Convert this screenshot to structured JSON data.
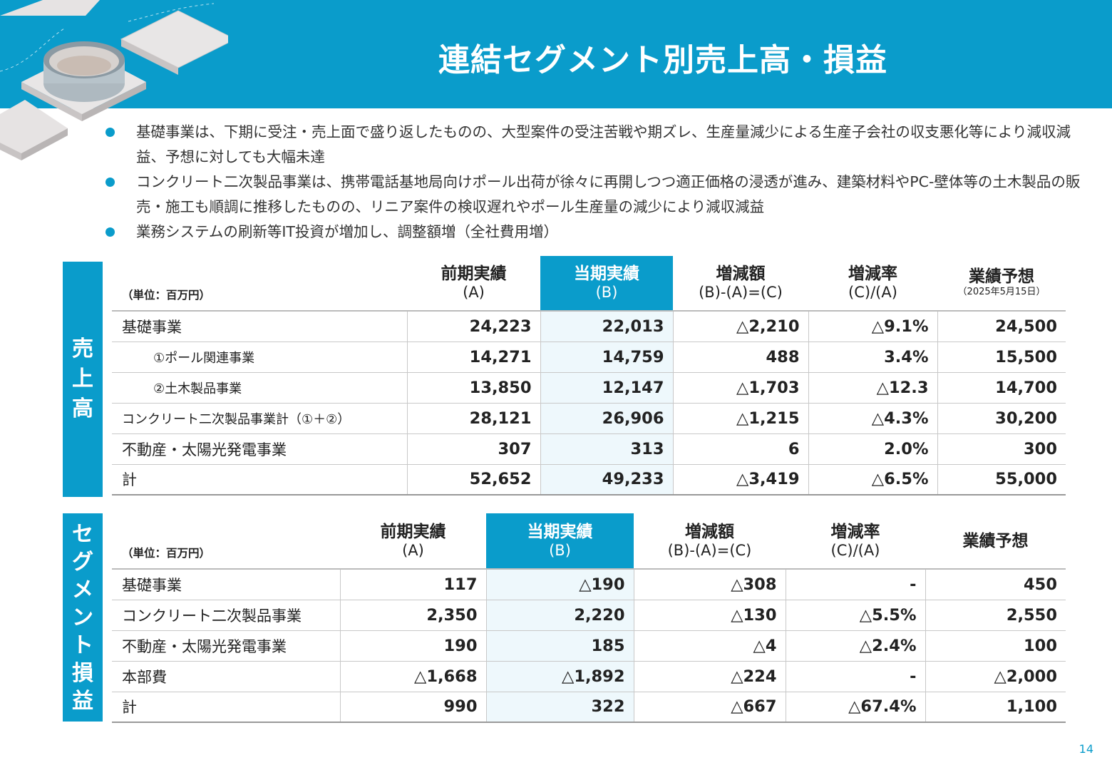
{
  "title": "連結セグメント別売上高・損益",
  "bullets": [
    "基礎事業は、下期に受注・売上面で盛り返したものの、大型案件の受注苦戦や期ズレ、生産量減少による生産子会社の収支悪化等により減収減益、予想に対しても大幅未達",
    "コンクリート二次製品事業は、携帯電話基地局向けポール出荷が徐々に再開しつつ適正価格の浸透が進み、建築材料やPC-壁体等の土木製品の販売・施工も順調に推移したものの、リニア案件の検収遅れやポール生産量の減少により減収減益",
    "業務システムの刷新等IT投資が増加し、調整額増（全社費用増）"
  ],
  "sales": {
    "side_label": [
      "売",
      "上",
      "高"
    ],
    "unit": "（単位：百万円）",
    "headers": {
      "prev": "前期実績",
      "prev_sub": "(A)",
      "cur": "当期実績",
      "cur_sub": "(B)",
      "diff": "増減額",
      "diff_sub": "(B)-(A)=(C)",
      "rate": "増減率",
      "rate_sub": "(C)/(A)",
      "fcst": "業績予想",
      "fcst_sub": "（2025年5月15日）"
    },
    "rows": [
      {
        "label": "基礎事業",
        "prev": "24,223",
        "cur": "22,013",
        "diff": "△2,210",
        "rate": "△9.1%",
        "fcst": "24,500"
      },
      {
        "label": "①ポール関連事業",
        "prev": "14,271",
        "cur": "14,759",
        "diff": "488",
        "rate": "3.4%",
        "fcst": "15,500"
      },
      {
        "label": "②土木製品事業",
        "prev": "13,850",
        "cur": "12,147",
        "diff": "△1,703",
        "rate": "△12.3",
        "fcst": "14,700"
      },
      {
        "label": "コンクリート二次製品事業計（①＋②）",
        "prev": "28,121",
        "cur": "26,906",
        "diff": "△1,215",
        "rate": "△4.3%",
        "fcst": "30,200"
      },
      {
        "label": "不動産・太陽光発電事業",
        "prev": "307",
        "cur": "313",
        "diff": "6",
        "rate": "2.0%",
        "fcst": "300"
      },
      {
        "label": "計",
        "prev": "52,652",
        "cur": "49,233",
        "diff": "△3,419",
        "rate": "△6.5%",
        "fcst": "55,000"
      }
    ]
  },
  "profit": {
    "side_label": [
      "セ",
      "グ",
      "メ",
      "ン",
      "ト",
      "損",
      "益"
    ],
    "unit": "（単位：百万円）",
    "headers": {
      "prev": "前期実績",
      "prev_sub": "(A)",
      "cur": "当期実績",
      "cur_sub": "(B)",
      "diff": "増減額",
      "diff_sub": "(B)-(A)=(C)",
      "rate": "増減率",
      "rate_sub": "(C)/(A)",
      "fcst": "業績予想"
    },
    "rows": [
      {
        "label": "基礎事業",
        "prev": "117",
        "cur": "△190",
        "diff": "△308",
        "rate": "-",
        "fcst": "450"
      },
      {
        "label": "コンクリート二次製品事業",
        "prev": "2,350",
        "cur": "2,220",
        "diff": "△130",
        "rate": "△5.5%",
        "fcst": "2,550"
      },
      {
        "label": "不動産・太陽光発電事業",
        "prev": "190",
        "cur": "185",
        "diff": "△4",
        "rate": "△2.4%",
        "fcst": "100"
      },
      {
        "label": "本部費",
        "prev": "△1,668",
        "cur": "△1,892",
        "diff": "△224",
        "rate": "-",
        "fcst": "△2,000"
      },
      {
        "label": "計",
        "prev": "990",
        "cur": "322",
        "diff": "△667",
        "rate": "△67.4%",
        "fcst": "1,100"
      }
    ]
  },
  "page_number": "14",
  "colors": {
    "accent": "#0a9ccb",
    "highlight_cell": "#eef8fc"
  }
}
